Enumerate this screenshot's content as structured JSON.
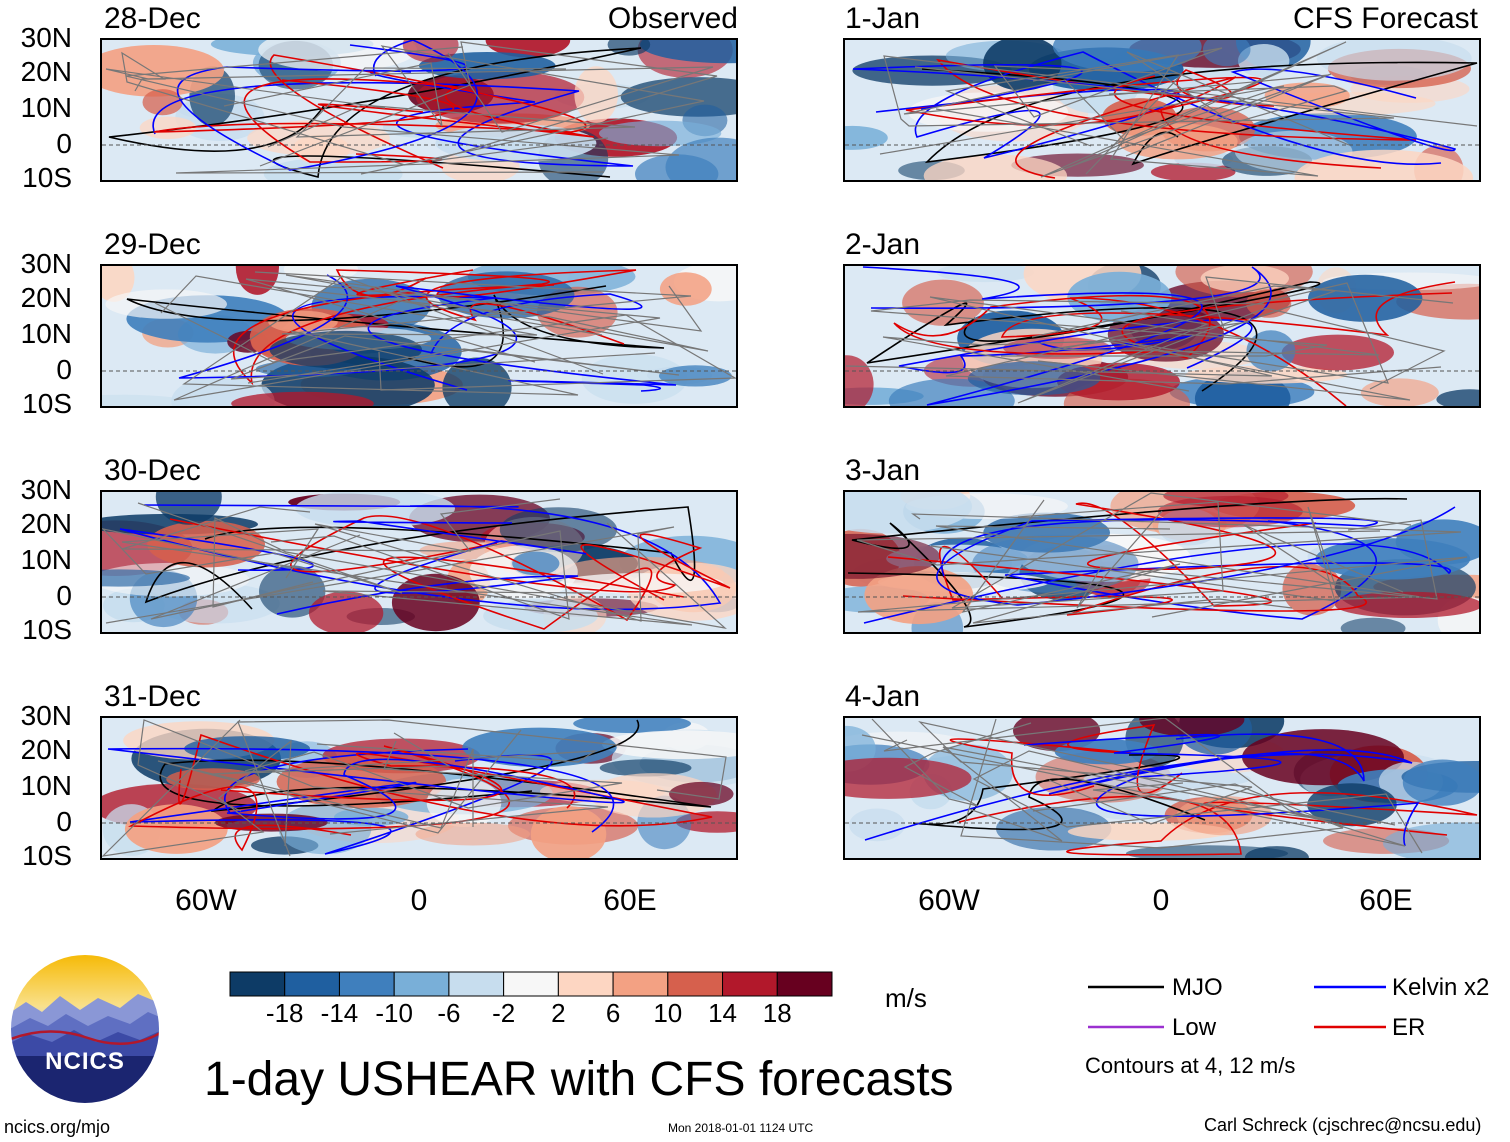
{
  "columns": {
    "left_title": "Observed",
    "right_title": "CFS Forecast"
  },
  "panels": {
    "left": [
      "28-Dec",
      "29-Dec",
      "30-Dec",
      "31-Dec"
    ],
    "right": [
      "1-Jan",
      "2-Jan",
      "3-Jan",
      "4-Jan"
    ]
  },
  "axes": {
    "lat_labels": [
      "30N",
      "20N",
      "10N",
      "0",
      "10S"
    ],
    "lon_labels": [
      "60W",
      "0",
      "60E"
    ]
  },
  "colorbar": {
    "ticks": [
      "-18",
      "-14",
      "-10",
      "-6",
      "-2",
      "2",
      "6",
      "10",
      "14",
      "18"
    ],
    "units": "m/s",
    "colors": [
      "#0d3b66",
      "#1f5fa0",
      "#3f7fbd",
      "#79afd8",
      "#c7ddee",
      "#f7f7f7",
      "#fdd6c2",
      "#f3a183",
      "#d6604d",
      "#b2182b",
      "#67001f"
    ]
  },
  "legend": {
    "items": [
      {
        "label": "MJO",
        "color": "#000000"
      },
      {
        "label": "Kelvin x2",
        "color": "#0000ff"
      },
      {
        "label": "Low",
        "color": "#9b30d0"
      },
      {
        "label": "ER",
        "color": "#e00000"
      }
    ],
    "note": "Contours at 4, 12 m/s"
  },
  "logo": {
    "text": "NCICS"
  },
  "title": "1-day USHEAR with CFS forecasts",
  "footer": {
    "left": "ncics.org/mjo",
    "center": "Mon 2018-01-01 1124 UTC",
    "right": "Carl Schreck (cjschrec@ncsu.edu)"
  }
}
